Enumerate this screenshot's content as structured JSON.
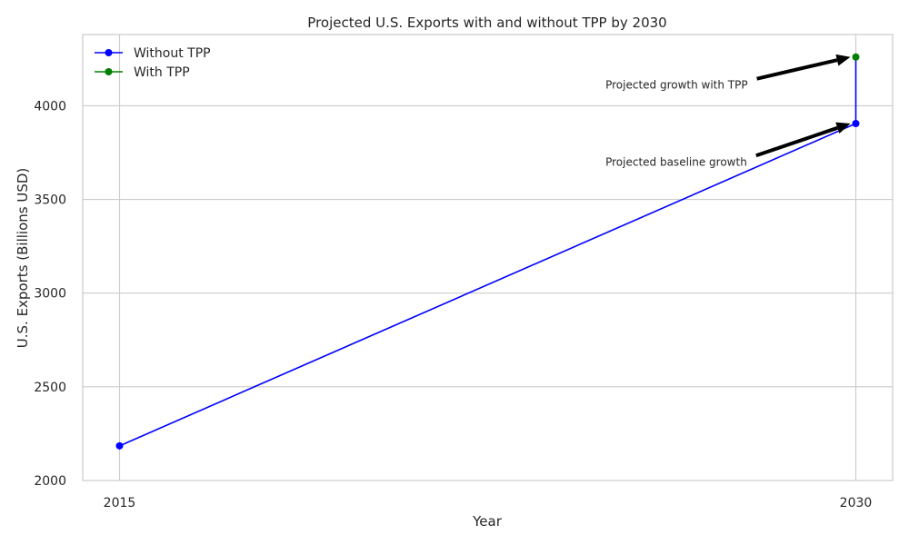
{
  "chart_data": {
    "type": "line",
    "title": "Projected U.S. Exports with and without TPP by 2030",
    "xlabel": "Year",
    "ylabel": "U.S. Exports (Billions USD)",
    "xlim": [
      2014.25,
      2030.75
    ],
    "ylim": [
      2000,
      4380
    ],
    "xticks": [
      2015,
      2030
    ],
    "yticks": [
      2000,
      2500,
      3000,
      3500,
      4000
    ],
    "grid": true,
    "legend_position": "top-left",
    "series": [
      {
        "name": "Without TPP",
        "color": "#0000ff",
        "points": [
          [
            2015,
            2185
          ],
          [
            2030,
            3905
          ]
        ]
      },
      {
        "name": "With TPP",
        "color": "#008000",
        "points": [
          [
            2030,
            4260
          ]
        ]
      }
    ],
    "connector": {
      "color": "#0000ff",
      "from": [
        2030,
        3905
      ],
      "to": [
        2030,
        4260
      ]
    },
    "annotations": [
      {
        "text": "Projected growth with TPP",
        "target": [
          2030,
          4260
        ],
        "text_at": [
          2024.9,
          4110
        ]
      },
      {
        "text": "Projected baseline growth",
        "target": [
          2030,
          3905
        ],
        "text_at": [
          2024.9,
          3700
        ]
      }
    ]
  }
}
